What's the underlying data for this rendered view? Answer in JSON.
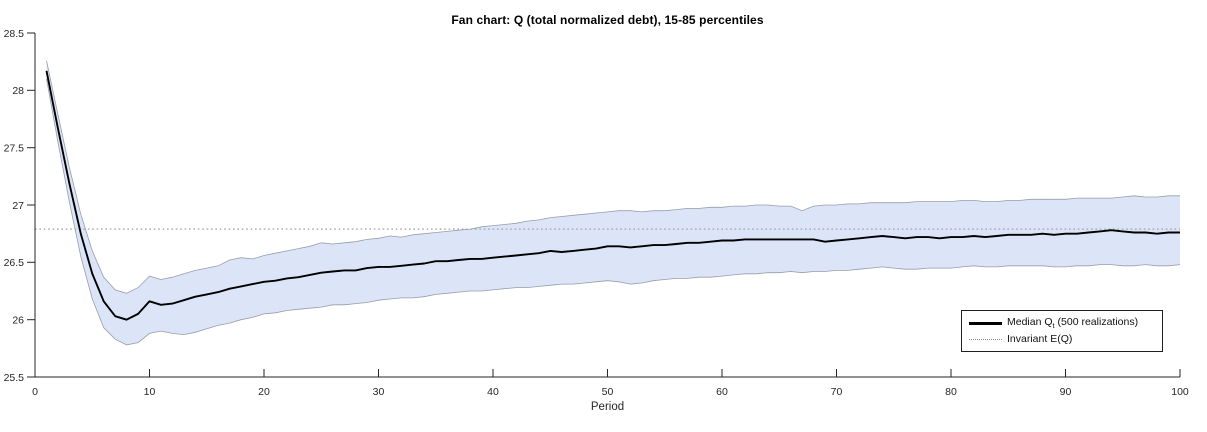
{
  "title": "Fan chart: Q (total normalized debt), 15-85 percentiles",
  "xlabel": "Period",
  "legend": {
    "median": {
      "pre": "Median Q",
      "sub": "t",
      "post": " (500 realizations)"
    },
    "invariant": "Invariant E(Q)"
  },
  "colors": {
    "band_fill": "#dce4f8",
    "band_edge": "#979da9",
    "median_line": "#000000",
    "invariant_line": "#a0a0a0",
    "axis": "#262626",
    "tick_text": "#262626"
  },
  "chart_data": {
    "type": "area",
    "title": "Fan chart: Q (total normalized debt), 15-85 percentiles",
    "xlabel": "Period",
    "ylabel": "",
    "grid": false,
    "legend_position": "lower right",
    "xlim": [
      0,
      100
    ],
    "ylim": [
      25.5,
      28.5
    ],
    "xticks": [
      0,
      10,
      20,
      30,
      40,
      50,
      60,
      70,
      80,
      90,
      100
    ],
    "yticks": [
      25.5,
      26,
      26.5,
      27,
      27.5,
      28,
      28.5
    ],
    "invariant_EQ": 26.79,
    "x": [
      1,
      2,
      3,
      4,
      5,
      6,
      7,
      8,
      9,
      10,
      11,
      12,
      13,
      14,
      15,
      16,
      17,
      18,
      19,
      20,
      21,
      22,
      23,
      24,
      25,
      26,
      27,
      28,
      29,
      30,
      31,
      32,
      33,
      34,
      35,
      36,
      37,
      38,
      39,
      40,
      41,
      42,
      43,
      44,
      45,
      46,
      47,
      48,
      49,
      50,
      51,
      52,
      53,
      54,
      55,
      56,
      57,
      58,
      59,
      60,
      61,
      62,
      63,
      64,
      65,
      66,
      67,
      68,
      69,
      70,
      71,
      72,
      73,
      74,
      75,
      76,
      77,
      78,
      79,
      80,
      81,
      82,
      83,
      84,
      85,
      86,
      87,
      88,
      89,
      90,
      91,
      92,
      93,
      94,
      95,
      96,
      97,
      98,
      99,
      100
    ],
    "series": [
      {
        "name": "85th percentile",
        "values": [
          28.26,
          27.79,
          27.33,
          26.92,
          26.6,
          26.37,
          26.26,
          26.23,
          26.28,
          26.38,
          26.35,
          26.37,
          26.4,
          26.43,
          26.45,
          26.47,
          26.52,
          26.54,
          26.53,
          26.56,
          26.58,
          26.6,
          26.62,
          26.64,
          26.67,
          26.66,
          26.67,
          26.68,
          26.7,
          26.71,
          26.73,
          26.72,
          26.74,
          26.75,
          26.76,
          26.77,
          26.78,
          26.79,
          26.81,
          26.82,
          26.83,
          26.84,
          26.86,
          26.87,
          26.89,
          26.9,
          26.91,
          26.92,
          26.93,
          26.94,
          26.95,
          26.95,
          26.94,
          26.95,
          26.95,
          26.96,
          26.97,
          26.97,
          26.98,
          26.98,
          26.99,
          26.99,
          27.0,
          27.0,
          26.99,
          26.99,
          26.95,
          26.99,
          27.0,
          27.0,
          27.01,
          27.01,
          27.02,
          27.02,
          27.02,
          27.02,
          27.03,
          27.03,
          27.03,
          27.03,
          27.04,
          27.04,
          27.03,
          27.03,
          27.04,
          27.04,
          27.05,
          27.05,
          27.05,
          27.05,
          27.06,
          27.06,
          27.06,
          27.06,
          27.07,
          27.08,
          27.07,
          27.07,
          27.08,
          27.08
        ]
      },
      {
        "name": "Median Qt (500 realizations)",
        "values": [
          28.17,
          27.67,
          27.19,
          26.75,
          26.4,
          26.16,
          26.03,
          26.0,
          26.05,
          26.16,
          26.13,
          26.14,
          26.17,
          26.2,
          26.22,
          26.24,
          26.27,
          26.29,
          26.31,
          26.33,
          26.34,
          26.36,
          26.37,
          26.39,
          26.41,
          26.42,
          26.43,
          26.43,
          26.45,
          26.46,
          26.46,
          26.47,
          26.48,
          26.49,
          26.51,
          26.51,
          26.52,
          26.53,
          26.53,
          26.54,
          26.55,
          26.56,
          26.57,
          26.58,
          26.6,
          26.59,
          26.6,
          26.61,
          26.62,
          26.64,
          26.64,
          26.63,
          26.64,
          26.65,
          26.65,
          26.66,
          26.67,
          26.67,
          26.68,
          26.69,
          26.69,
          26.7,
          26.7,
          26.7,
          26.7,
          26.7,
          26.7,
          26.7,
          26.68,
          26.69,
          26.7,
          26.71,
          26.72,
          26.73,
          26.72,
          26.71,
          26.72,
          26.72,
          26.71,
          26.72,
          26.72,
          26.73,
          26.72,
          26.73,
          26.74,
          26.74,
          26.74,
          26.75,
          26.74,
          26.75,
          26.75,
          26.76,
          26.77,
          26.78,
          26.77,
          26.76,
          26.76,
          26.75,
          26.76,
          26.76
        ]
      },
      {
        "name": "15th percentile",
        "values": [
          28.1,
          27.55,
          27.03,
          26.55,
          26.18,
          25.93,
          25.83,
          25.78,
          25.8,
          25.88,
          25.9,
          25.88,
          25.87,
          25.89,
          25.92,
          25.95,
          25.97,
          26.0,
          26.02,
          26.05,
          26.06,
          26.08,
          26.09,
          26.1,
          26.11,
          26.13,
          26.13,
          26.14,
          26.15,
          26.17,
          26.18,
          26.19,
          26.19,
          26.2,
          26.22,
          26.23,
          26.24,
          26.25,
          26.25,
          26.26,
          26.27,
          26.28,
          26.28,
          26.29,
          26.3,
          26.31,
          26.31,
          26.32,
          26.33,
          26.34,
          26.33,
          26.31,
          26.32,
          26.34,
          26.35,
          26.36,
          26.36,
          26.37,
          26.37,
          26.38,
          26.39,
          26.4,
          26.4,
          26.41,
          26.41,
          26.42,
          26.41,
          26.42,
          26.42,
          26.43,
          26.43,
          26.44,
          26.45,
          26.46,
          26.45,
          26.44,
          26.44,
          26.45,
          26.45,
          26.45,
          26.46,
          26.47,
          26.46,
          26.46,
          26.47,
          26.47,
          26.47,
          26.47,
          26.46,
          26.46,
          26.47,
          26.47,
          26.48,
          26.48,
          26.47,
          26.47,
          26.48,
          26.47,
          26.47,
          26.48
        ]
      }
    ]
  }
}
